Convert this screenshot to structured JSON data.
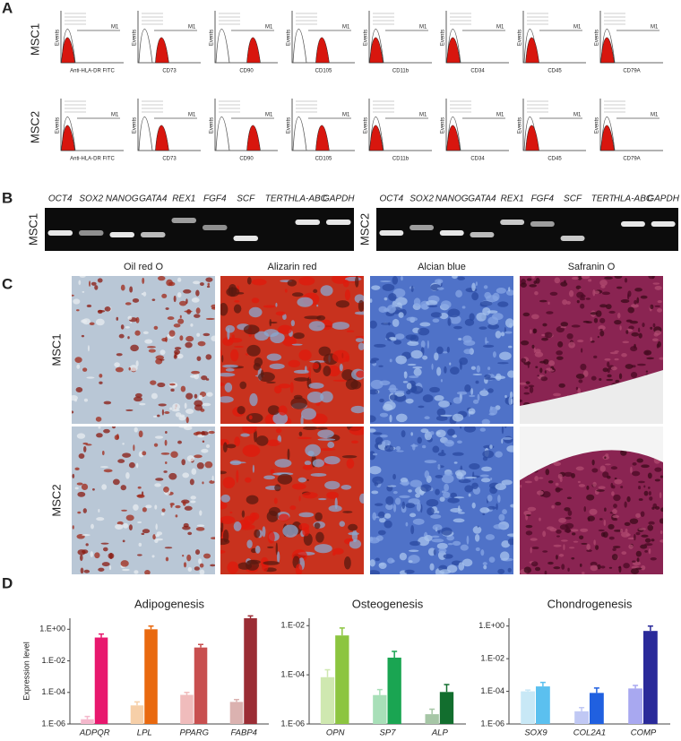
{
  "panel_labels": [
    "A",
    "B",
    "C",
    "D"
  ],
  "flow": {
    "rows": [
      "MSC1",
      "MSC2"
    ],
    "markers": [
      "Anti-HLA-DR FITC",
      "CD73",
      "CD90",
      "CD105",
      "CD11b",
      "CD34",
      "CD45",
      "CD79A"
    ],
    "y_label": "Events",
    "gate": "M1"
  },
  "gel": {
    "blots": [
      {
        "label": "MSC1",
        "genes": [
          "OCT4",
          "SOX2",
          "NANOG",
          "GATA4",
          "REX1",
          "FGF4",
          "SCF",
          "TERT",
          "HLA-ABC",
          "GAPDH"
        ]
      },
      {
        "label": "MSC2",
        "genes": [
          "OCT4",
          "SOX2",
          "NANOG",
          "GATA4",
          "REX1",
          "FGF4",
          "SCF",
          "TERT",
          "HLA-ABC",
          "GAPDH"
        ]
      }
    ]
  },
  "staining": {
    "columns": [
      "Oil red O",
      "Alizarin red",
      "Alcian blue",
      "Safranin O"
    ],
    "rows": [
      "MSC1",
      "MSC2"
    ]
  },
  "chart_data": [
    {
      "type": "bar",
      "title": "Adipogenesis",
      "ylabel": "Expression level",
      "log_scale": true,
      "categories": [
        "ADPQR",
        "LPL",
        "PPARG",
        "FABP4"
      ],
      "ylim": [
        1e-06,
        5
      ],
      "yticks": [
        {
          "value": 1,
          "label": "1.E+00"
        },
        {
          "value": 0.01,
          "label": "1.E-02"
        },
        {
          "value": 0.0001,
          "label": "1.E-04"
        },
        {
          "value": 1e-06,
          "label": "1.E-06"
        }
      ],
      "series": [
        {
          "colors": [
            "#f4b8cc",
            "#f6cfa8",
            "#f0bcbc",
            "#dbb2b0"
          ],
          "values": [
            2e-06,
            1.5e-05,
            7e-05,
            2.5e-05
          ],
          "errors": [
            1e-06,
            1e-05,
            3e-05,
            1e-05
          ]
        },
        {
          "colors": [
            "#e8186e",
            "#e9690f",
            "#c84f4f",
            "#9b2d35"
          ],
          "values": [
            0.3,
            1,
            0.07,
            5
          ],
          "errors": [
            0.2,
            0.6,
            0.04,
            2
          ]
        }
      ]
    },
    {
      "type": "bar",
      "title": "Osteogenesis",
      "log_scale": true,
      "categories": [
        "OPN",
        "SP7",
        "ALP"
      ],
      "ylim": [
        1e-06,
        0.02
      ],
      "yticks": [
        {
          "value": 0.01,
          "label": "1.E-02"
        },
        {
          "value": 0.0001,
          "label": "1.E-04"
        },
        {
          "value": 1e-06,
          "label": "1.E-06"
        }
      ],
      "series": [
        {
          "colors": [
            "#cfe8b0",
            "#a8dfb8",
            "#a6c6a6"
          ],
          "values": [
            8e-05,
            1.5e-05,
            2.5e-06
          ],
          "errors": [
            8e-05,
            1e-05,
            1.5e-06
          ]
        },
        {
          "colors": [
            "#8cc540",
            "#1aa552",
            "#126e2e"
          ],
          "values": [
            0.004,
            0.0005,
            2e-05
          ],
          "errors": [
            0.004,
            0.0004,
            2e-05
          ]
        }
      ]
    },
    {
      "type": "bar",
      "title": "Chondrogenesis",
      "log_scale": true,
      "categories": [
        "SOX9",
        "COL2A1",
        "COMP"
      ],
      "ylim": [
        1e-06,
        3
      ],
      "yticks": [
        {
          "value": 1,
          "label": "1.E+00"
        },
        {
          "value": 0.01,
          "label": "1.E-02"
        },
        {
          "value": 0.0001,
          "label": "1.E-04"
        },
        {
          "value": 1e-06,
          "label": "1.E-06"
        }
      ],
      "series": [
        {
          "colors": [
            "#c8e8f6",
            "#c0c8f4",
            "#a8a8f0"
          ],
          "values": [
            0.0001,
            6e-06,
            0.00015
          ],
          "errors": [
            2e-05,
            4e-06,
            8e-05
          ]
        },
        {
          "colors": [
            "#5bc0ef",
            "#2060e0",
            "#2a2a9a"
          ],
          "values": [
            0.0002,
            8e-05,
            0.5
          ],
          "errors": [
            0.00015,
            8e-05,
            0.5
          ]
        }
      ]
    }
  ]
}
